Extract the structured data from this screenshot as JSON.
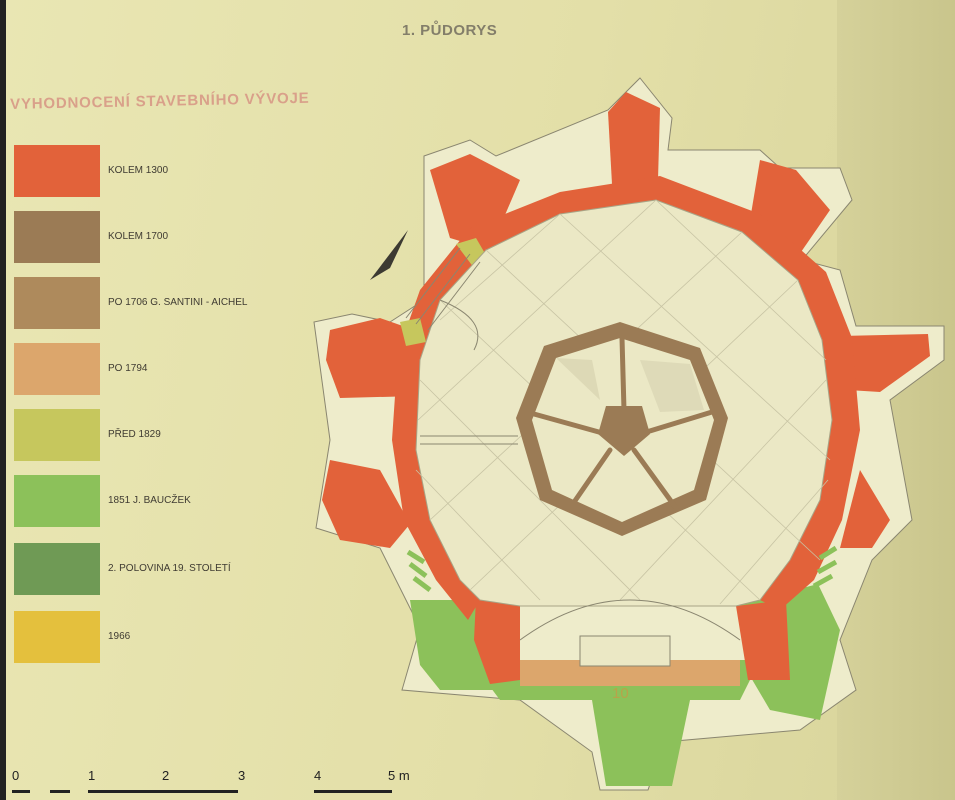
{
  "title": "1. PŮDORYS",
  "legend": {
    "title": "VYHODNOCENÍ STAVEBNÍHO VÝVOJE",
    "items": [
      {
        "label": "KOLEM 1300",
        "color": "#e2623a"
      },
      {
        "label": "KOLEM 1700",
        "color": "#9b7b55"
      },
      {
        "label": "PO 1706 G. SANTINI - AICHEL",
        "color": "#ae8a5c"
      },
      {
        "label": "PO 1794",
        "color": "#dca66c"
      },
      {
        "label": "PŘED 1829",
        "color": "#c6c75d"
      },
      {
        "label": "1851 J. BAUCŽEK",
        "color": "#8cc15a"
      },
      {
        "label": "2. POLOVINA 19. STOLETÍ",
        "color": "#6f9a55"
      },
      {
        "label": "1966",
        "color": "#e4c03d"
      }
    ]
  },
  "plan": {
    "room_label": "10"
  },
  "scale": {
    "labels": [
      "0",
      "1",
      "2",
      "3",
      "4",
      "5 m"
    ]
  }
}
